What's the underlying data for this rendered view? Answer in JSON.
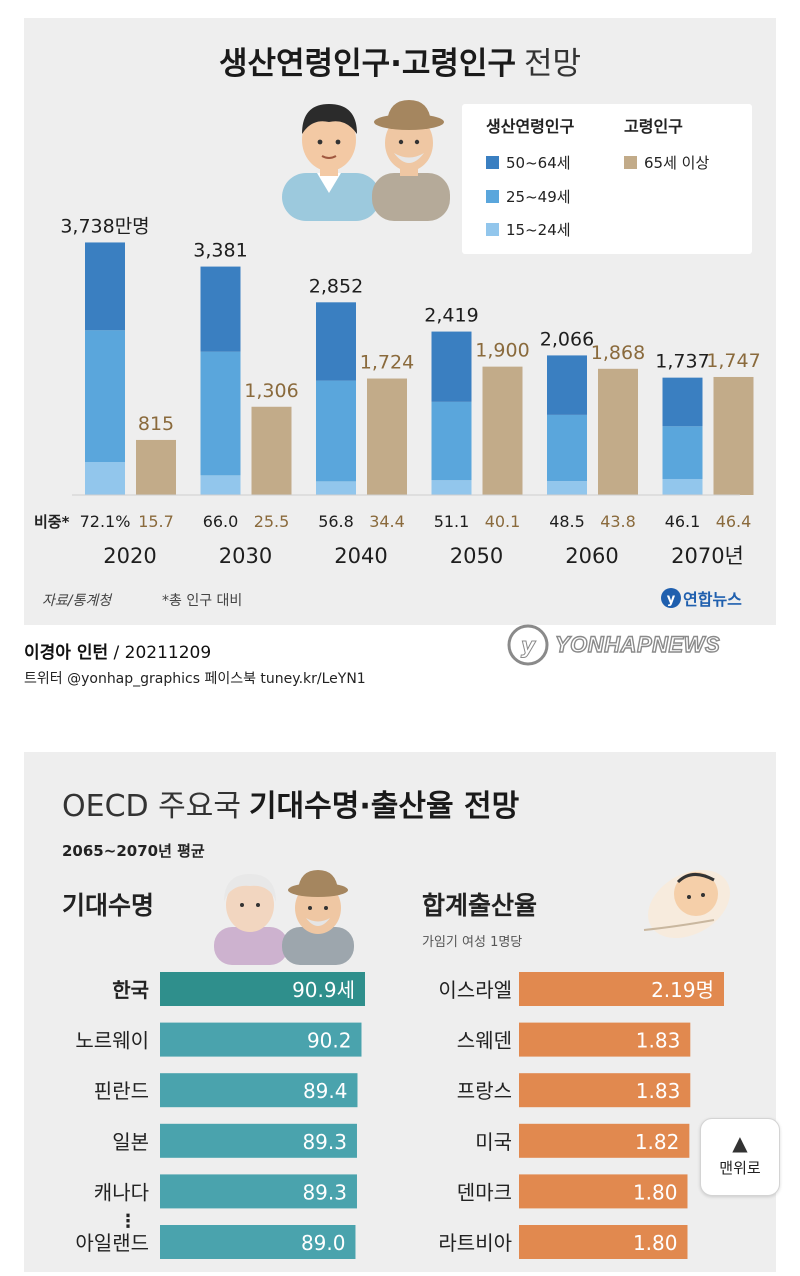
{
  "chart_data": [
    {
      "type": "bar",
      "title_main": "생산연령인구·고령인구",
      "title_light": "전망",
      "categories": [
        "2020",
        "2030",
        "2040",
        "2050",
        "2060",
        "2070년"
      ],
      "series": [
        {
          "name": "50~64세",
          "values": [
            1300,
            1260,
            1160,
            1040,
            880,
            720
          ],
          "color": "#3a7fc1"
        },
        {
          "name": "25~49세",
          "values": [
            1950,
            1830,
            1490,
            1160,
            980,
            780
          ],
          "color": "#5aa6dc"
        },
        {
          "name": "15~24세",
          "values": [
            488,
            291,
            202,
            219,
            206,
            237
          ],
          "color": "#92c6ec"
        },
        {
          "name": "65세 이상",
          "values": [
            815,
            1306,
            1724,
            1900,
            1868,
            1747
          ],
          "color": "#c2ab89"
        }
      ],
      "legend_header_working": "생산연령인구",
      "legend_header_elderly": "고령인구",
      "working_totals": [
        "3,738만명",
        "3,381",
        "2,852",
        "2,419",
        "2,066",
        "1,737"
      ],
      "elderly_labels": [
        "815",
        "1,306",
        "1,724",
        "1,900",
        "1,868",
        "1,747"
      ],
      "share_label": "비중*",
      "share_working": [
        "72.1%",
        "66.0",
        "56.8",
        "51.1",
        "48.5",
        "46.1"
      ],
      "share_elderly": [
        "15.7",
        "25.5",
        "34.4",
        "40.1",
        "43.8",
        "46.4"
      ],
      "source": "자료/통계청",
      "footnote": "*총 인구 대비",
      "logo": "연합뉴스",
      "ylim": [
        0,
        4100
      ]
    },
    {
      "type": "bar",
      "orientation": "horizontal",
      "title_light": "OECD 주요국",
      "title_main": "기대수명·출산율 전망",
      "subtitle": "2065~2070년 평균",
      "left_title": "기대수명",
      "left_categories": [
        "한국",
        "노르웨이",
        "핀란드",
        "일본",
        "캐나다",
        "아일랜드"
      ],
      "left_values": [
        90.9,
        90.2,
        89.4,
        89.3,
        89.3,
        89.0
      ],
      "left_labels": [
        "90.9세",
        "90.2",
        "89.4",
        "89.3",
        "89.3",
        "89.0"
      ],
      "right_title": "합계출산율",
      "right_subtitle": "가임기 여성 1명당",
      "right_categories": [
        "이스라엘",
        "스웨덴",
        "프랑스",
        "미국",
        "덴마크",
        "라트비아"
      ],
      "right_values": [
        2.19,
        1.83,
        1.83,
        1.82,
        1.8,
        1.8
      ],
      "right_labels": [
        "2.19명",
        "1.83",
        "1.83",
        "1.82",
        "1.80",
        "1.80"
      ],
      "ellipsis": "⋮",
      "highlight_color": "#2f8f8c",
      "left_color": "#4aa3ad",
      "right_color": "#e1894f"
    }
  ],
  "credit": {
    "author": "이경아 인턴",
    "date": "/ 20211209"
  },
  "social": "트위터 @yonhap_graphics  페이스북 tuney.kr/LeYN1",
  "watermark": "YONHAPNEWS",
  "scroll_top_button": "맨위로"
}
